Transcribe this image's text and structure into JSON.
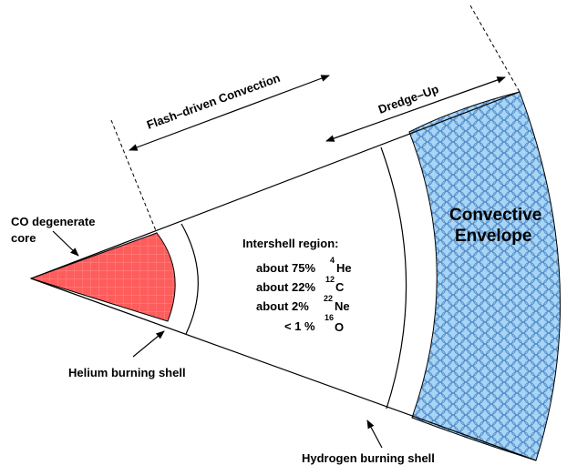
{
  "labels": {
    "flash_convection": "Flash–driven Convection",
    "dredge_up": "Dredge–Up",
    "co_core_line1": "CO degenerate",
    "co_core_line2": "core",
    "helium_shell": "Helium burning shell",
    "hydrogen_shell": "Hydrogen burning shell",
    "envelope_line1": "Convective",
    "envelope_line2": "Envelope",
    "intershell_title": "Intershell region:"
  },
  "composition": [
    {
      "prefix": "about 75%",
      "isotope": "4",
      "element": "He"
    },
    {
      "prefix": "about 22%",
      "isotope": "12",
      "element": "C"
    },
    {
      "prefix": "about 2%",
      "isotope": "22",
      "element": "Ne"
    },
    {
      "prefix": "< 1 %",
      "isotope": "16",
      "element": "O"
    }
  ],
  "colors": {
    "core_fill": "#ff5c5c",
    "envelope_fill": "#a8d4f5",
    "envelope_bubble": "#4a86c5",
    "outline": "#000000"
  }
}
